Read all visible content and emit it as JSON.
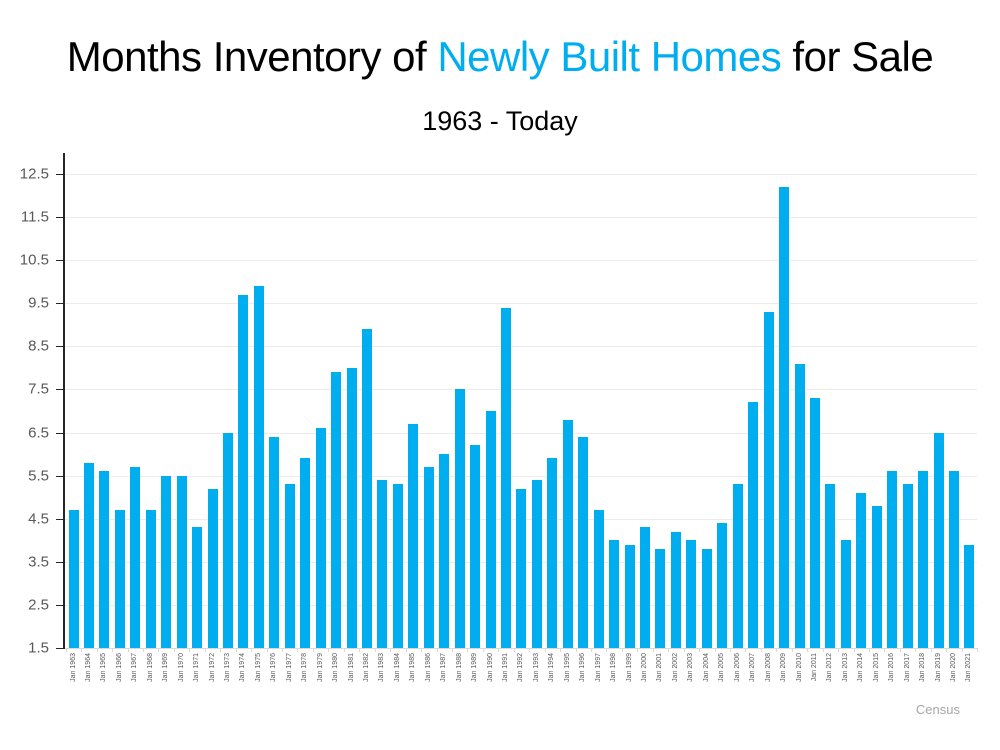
{
  "header": {
    "title_prefix": "Months Inventory of ",
    "title_highlight": "Newly Built Homes",
    "title_suffix": " for Sale",
    "subtitle": "1963 - Today"
  },
  "source_label": "Census",
  "style": {
    "accent": "#00AEEF",
    "title_text": "#000000",
    "axis_label": "#595959",
    "gridline": "#ECECEC",
    "baseline": "#D9D9D9",
    "axis_line": "#262626",
    "source_text": "#A6A6A6"
  },
  "chart_data": {
    "type": "bar",
    "title": "Months Inventory of Newly Built Homes for Sale",
    "subtitle": "1963 - Today",
    "xlabel": "",
    "ylabel": "",
    "ylim": [
      1.5,
      12.5
    ],
    "ytick_interval": 1.0,
    "yticks": [
      "1.5",
      "2.5",
      "3.5",
      "4.5",
      "5.5",
      "6.5",
      "7.5",
      "8.5",
      "9.5",
      "10.5",
      "11.5",
      "12.5"
    ],
    "grid": "horizontal",
    "legend_position": "none",
    "bar_color": "#00AEEF",
    "source": "Census",
    "categories": [
      "Jan 1963",
      "Jan 1964",
      "Jan 1965",
      "Jan 1966",
      "Jan 1967",
      "Jan 1968",
      "Jan 1969",
      "Jan 1970",
      "Jan 1971",
      "Jan 1972",
      "Jan 1973",
      "Jan 1974",
      "Jan 1975",
      "Jan 1976",
      "Jan 1977",
      "Jan 1978",
      "Jan 1979",
      "Jan 1980",
      "Jan 1981",
      "Jan 1982",
      "Jan 1983",
      "Jan 1984",
      "Jan 1985",
      "Jan 1986",
      "Jan 1987",
      "Jan 1988",
      "Jan 1989",
      "Jan 1990",
      "Jan 1991",
      "Jan 1992",
      "Jan 1993",
      "Jan 1994",
      "Jan 1995",
      "Jan 1996",
      "Jan 1997",
      "Jan 1998",
      "Jan 1999",
      "Jan 2000",
      "Jan 2001",
      "Jan 2002",
      "Jan 2003",
      "Jan 2004",
      "Jan 2005",
      "Jan 2006",
      "Jan 2007",
      "Jan 2008",
      "Jan 2009",
      "Jan 2010",
      "Jan 2011",
      "Jan 2012",
      "Jan 2013",
      "Jan 2014",
      "Jan 2015",
      "Jan 2016",
      "Jan 2017",
      "Jan 2018",
      "Jan 2019",
      "Jan 2020",
      "Jan 2021"
    ],
    "values": [
      4.7,
      5.8,
      5.6,
      4.7,
      5.7,
      4.7,
      5.5,
      5.5,
      4.3,
      5.2,
      6.5,
      9.7,
      9.9,
      6.4,
      5.3,
      5.9,
      6.6,
      7.9,
      8.0,
      8.9,
      5.4,
      5.3,
      6.7,
      5.7,
      6.0,
      7.5,
      6.2,
      7.0,
      9.4,
      5.2,
      5.4,
      5.9,
      6.8,
      6.4,
      4.7,
      4.0,
      3.9,
      4.3,
      3.8,
      4.2,
      4.0,
      3.8,
      4.4,
      5.3,
      7.2,
      9.3,
      12.2,
      8.1,
      7.3,
      5.3,
      4.0,
      5.1,
      4.8,
      5.6,
      5.3,
      5.6,
      6.5,
      5.6,
      3.9
    ]
  }
}
